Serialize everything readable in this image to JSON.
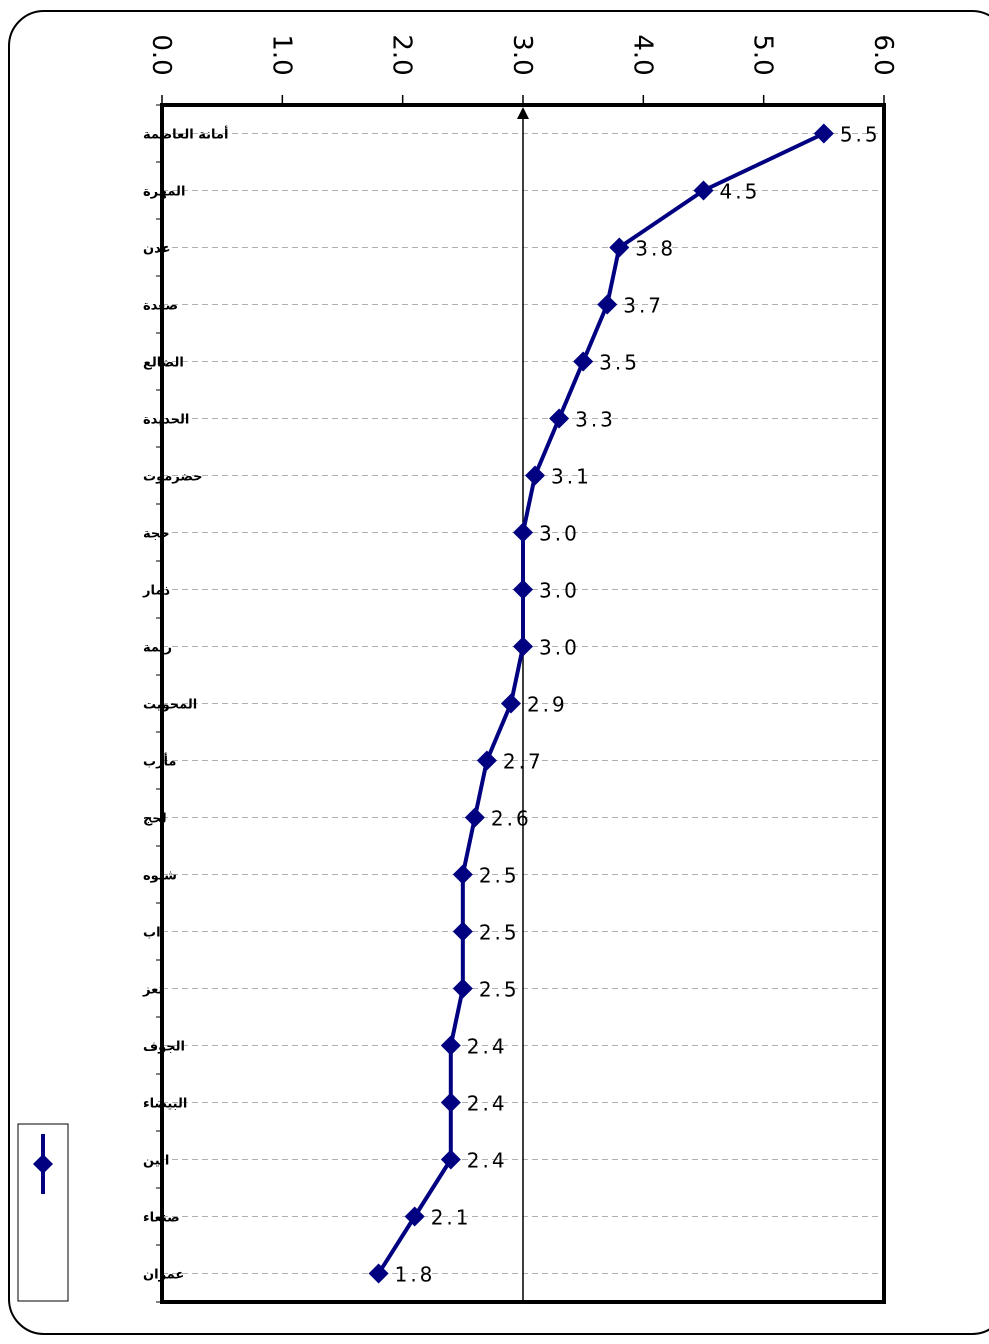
{
  "chart_data": {
    "type": "line",
    "orientation": "horizontal-values",
    "categories": [
      "أمانة العاصمة",
      "المهرة",
      "عدن",
      "صعدة",
      "الضالع",
      "الحديدة",
      "حضرموت",
      "حجة",
      "ذمار",
      "ريمة",
      "المحويت",
      "مأرب",
      "لحج",
      "شبوه",
      "اب",
      "تعز",
      "الجوف",
      "البيضاء",
      "ابين",
      "صنعاء",
      "عمران"
    ],
    "values": [
      5.5,
      4.5,
      3.8,
      3.7,
      3.5,
      3.3,
      3.1,
      3.0,
      3.0,
      3.0,
      2.9,
      2.7,
      2.6,
      2.5,
      2.5,
      2.5,
      2.4,
      2.4,
      2.4,
      2.1,
      1.8
    ],
    "labels": [
      "5.5",
      "4.5",
      "3.8",
      "3.7",
      "3.5",
      "3.3",
      "3.1",
      "3.0",
      "3.0",
      "3.0",
      "2.9",
      "2.7",
      "2.6",
      "2.5",
      "2.5",
      "2.5",
      "2.4",
      "2.4",
      "2.4",
      "2.1",
      "1.8"
    ],
    "xlim": [
      0,
      6
    ],
    "ticks": [
      "0.0",
      "1.0",
      "2.0",
      "3.0",
      "4.0",
      "5.0",
      "6.0"
    ],
    "reference_line": 3.0,
    "series_color": "#000080",
    "grid": "dashed horizontal",
    "legend": "bottom-left"
  }
}
